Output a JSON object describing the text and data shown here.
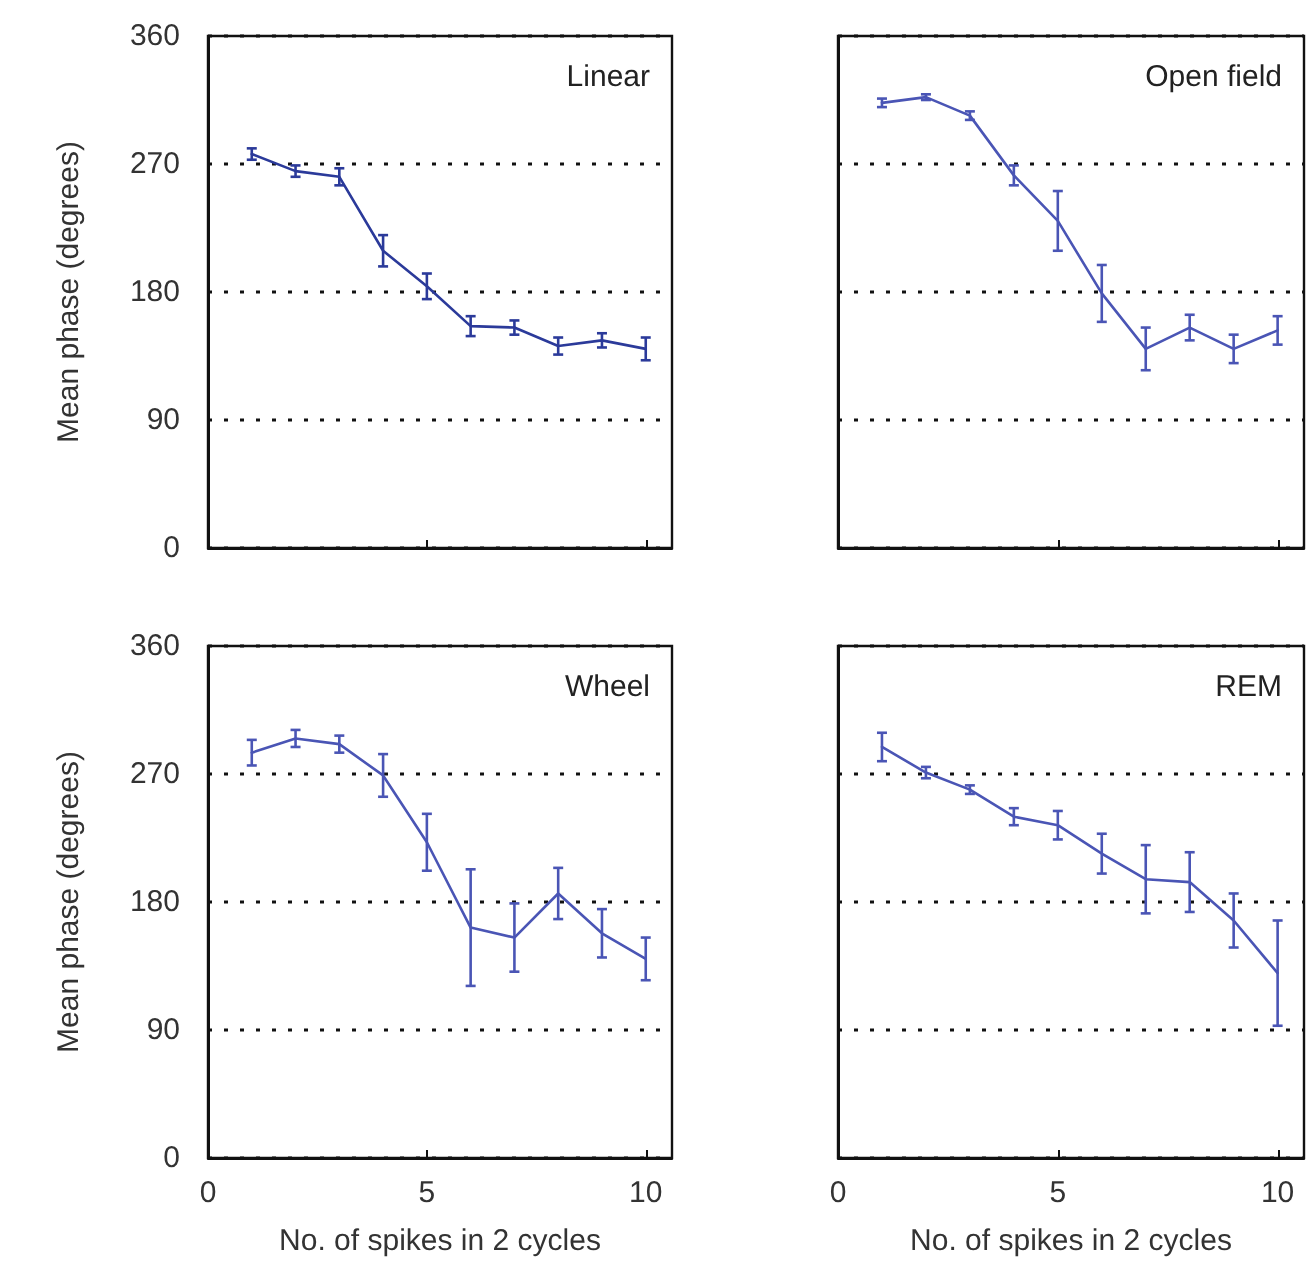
{
  "chart_data": [
    {
      "type": "line",
      "title": "Linear",
      "ylabel": "Mean phase (degrees)",
      "x": [
        1,
        2,
        3,
        4,
        5,
        6,
        7,
        8,
        9,
        10
      ],
      "xlim": [
        0,
        10.6
      ],
      "xticks": [
        0,
        5,
        10
      ],
      "ylim": [
        0,
        360
      ],
      "yticks": [
        0,
        90,
        180,
        270,
        360
      ],
      "grid": "y",
      "tick_labels": "y",
      "marker": "none",
      "series": [
        {
          "color": "#2b3a9a",
          "values": [
            277,
            265,
            261,
            209,
            184,
            156,
            155,
            142,
            146,
            140
          ],
          "errors": [
            4,
            4,
            6,
            11,
            9,
            7,
            5,
            6,
            5,
            8
          ]
        }
      ]
    },
    {
      "type": "line",
      "title": "Open field",
      "x": [
        1,
        2,
        3,
        4,
        5,
        6,
        7,
        8,
        9,
        10
      ],
      "xlim": [
        0,
        10.6
      ],
      "xticks": [
        0,
        5,
        10
      ],
      "ylim": [
        0,
        360
      ],
      "yticks": [
        0,
        90,
        180,
        270,
        360
      ],
      "grid": "y",
      "tick_labels": false,
      "marker": "none",
      "series": [
        {
          "color": "#4a55b5",
          "values": [
            313,
            317,
            304,
            262,
            230,
            179,
            140,
            155,
            140,
            153
          ],
          "errors": [
            3,
            2,
            3,
            7,
            21,
            20,
            15,
            9,
            10,
            10
          ]
        }
      ]
    },
    {
      "type": "line",
      "title": "Wheel",
      "ylabel": "Mean phase (degrees)",
      "xlabel": "No. of spikes in 2 cycles",
      "x": [
        1,
        2,
        3,
        4,
        5,
        6,
        7,
        8,
        9,
        10
      ],
      "xlim": [
        0,
        10.6
      ],
      "xticks": [
        0,
        5,
        10
      ],
      "ylim": [
        0,
        360
      ],
      "yticks": [
        0,
        90,
        180,
        270,
        360
      ],
      "grid": "y",
      "marker": "none",
      "series": [
        {
          "color": "#4a55b5",
          "values": [
            285,
            295,
            291,
            269,
            222,
            162,
            155,
            186,
            158,
            140
          ],
          "errors": [
            9,
            6,
            6,
            15,
            20,
            41,
            24,
            18,
            17,
            15
          ]
        }
      ]
    },
    {
      "type": "line",
      "title": "REM",
      "xlabel": "No. of spikes in 2 cycles",
      "x": [
        1,
        2,
        3,
        4,
        5,
        6,
        7,
        8,
        9,
        10
      ],
      "xlim": [
        0,
        10.6
      ],
      "xticks": [
        0,
        5,
        10
      ],
      "ylim": [
        0,
        360
      ],
      "yticks": [
        0,
        90,
        180,
        270,
        360
      ],
      "grid": "y",
      "tick_labels": "x",
      "marker": "none",
      "series": [
        {
          "color": "#4a55b5",
          "values": [
            289,
            271,
            259,
            240,
            234,
            214,
            196,
            194,
            167,
            130
          ],
          "errors": [
            10,
            4,
            3,
            6,
            10,
            14,
            24,
            21,
            19,
            37
          ]
        }
      ]
    }
  ]
}
